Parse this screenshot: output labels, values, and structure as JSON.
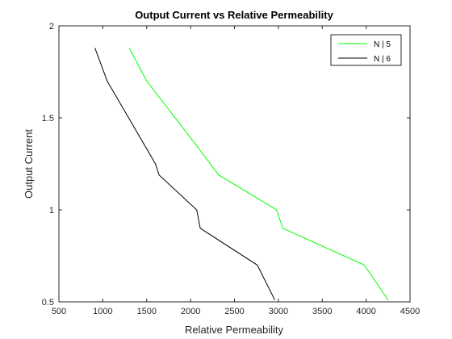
{
  "chart_data": {
    "type": "line",
    "title": "Output Current vs Relative Permeability",
    "xlabel": "Relative Permeability",
    "ylabel": "Output Current",
    "xlim": [
      500,
      4500
    ],
    "ylim": [
      0.5,
      2
    ],
    "xticks": [
      500,
      1000,
      1500,
      2000,
      2500,
      3000,
      3500,
      4000,
      4500
    ],
    "xtick_labels": [
      "500",
      "1000",
      "1500",
      "2000",
      "2500",
      "3000",
      "3500",
      "4000",
      "4500"
    ],
    "yticks": [
      0.5,
      1,
      1.5,
      2
    ],
    "ytick_labels": [
      "0.5",
      "1",
      "1.5",
      "2"
    ],
    "grid": false,
    "legend_position": "top-right",
    "series": [
      {
        "name": "N | 5",
        "color": "#00ff00",
        "x": [
          1300,
          1500,
          2050,
          2320,
          2980,
          3050,
          3980,
          4250
        ],
        "y": [
          1.88,
          1.7,
          1.36,
          1.19,
          1.0,
          0.9,
          0.7,
          0.51
        ]
      },
      {
        "name": "N | 6",
        "color": "#000000",
        "x": [
          910,
          1050,
          1600,
          1640,
          2070,
          2110,
          2760,
          2960
        ],
        "y": [
          1.88,
          1.7,
          1.25,
          1.19,
          1.0,
          0.9,
          0.7,
          0.51
        ]
      }
    ]
  }
}
